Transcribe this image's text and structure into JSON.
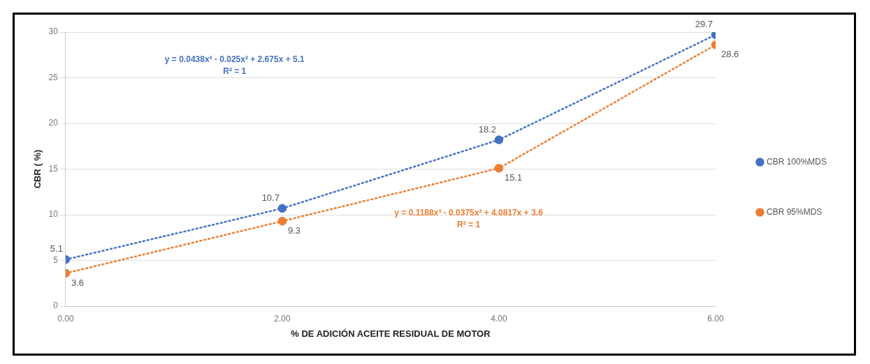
{
  "chart_data": {
    "type": "line",
    "xlabel": "% DE ADICIÓN ACEITE RESIDUAL DE MOTOR",
    "ylabel": "CBR ( %)",
    "x": [
      0,
      2,
      4,
      6
    ],
    "series": [
      {
        "name": "CBR 100%MDS",
        "color": "#4472c4",
        "values": [
          5.1,
          10.7,
          18.2,
          29.7
        ]
      },
      {
        "name": "CBR 95%MDS",
        "color": "#ed7d31",
        "values": [
          3.6,
          9.3,
          15.1,
          28.6
        ]
      }
    ],
    "xlim": [
      0,
      6
    ],
    "xticks": [
      {
        "value": 0,
        "label": "0.00"
      },
      {
        "value": 2,
        "label": "2.00"
      },
      {
        "value": 4,
        "label": "4.00"
      },
      {
        "value": 6,
        "label": "6.00"
      }
    ],
    "ylim": [
      0,
      30
    ],
    "yticks": [
      0,
      5,
      10,
      15,
      20,
      25,
      30
    ],
    "annotations": [
      "y = 0.0438x³ - 0.025x² + 2.675x + 5.1\nR² = 1",
      "y = 0.1188x³ - 0.0375x² + 4.0817x + 3.6\nR² = 1"
    ],
    "data_labels": true,
    "grid": "y",
    "legend": "right",
    "marker": "circle",
    "line_style": "dotted"
  }
}
